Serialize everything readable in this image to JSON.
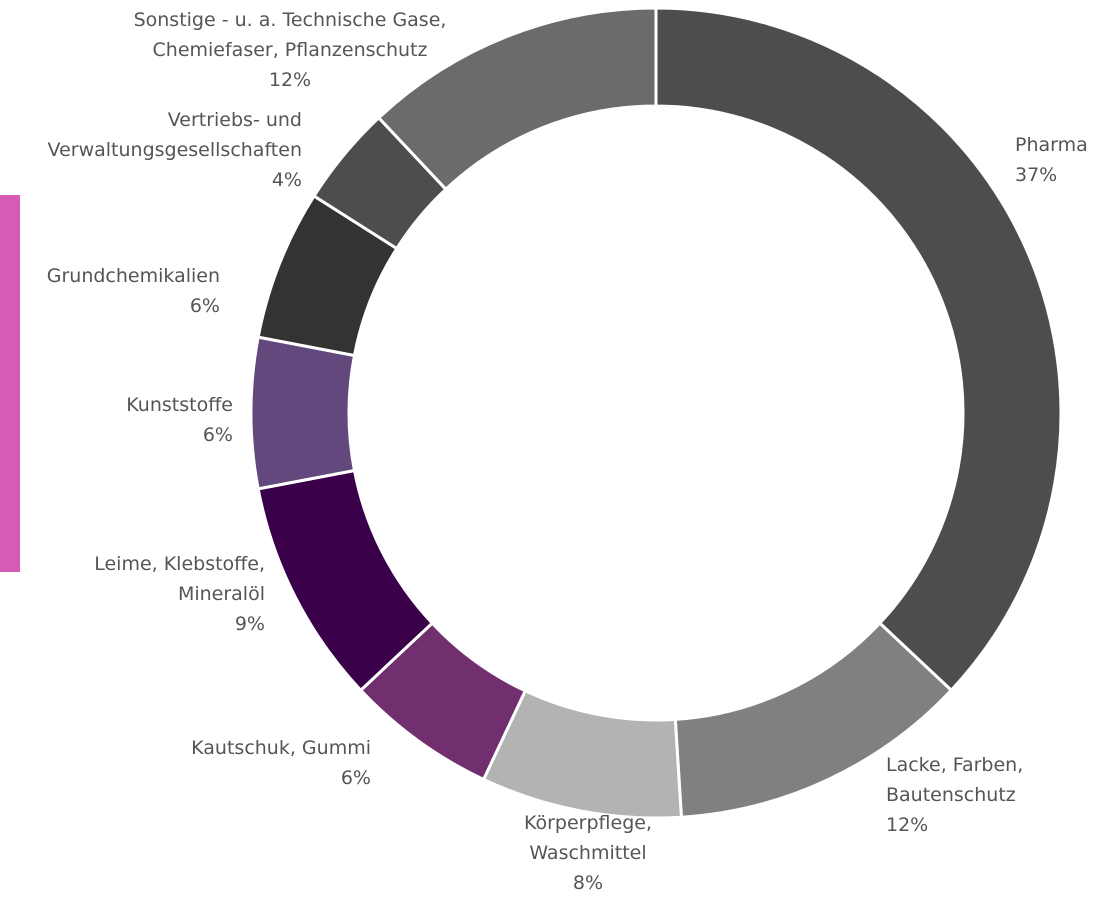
{
  "chart_data": {
    "type": "donut",
    "categories": [
      "Pharma",
      "Lacke, Farben, Bautenschutz",
      "Körperpflege, Waschmittel",
      "Kautschuk, Gummi",
      "Leime, Klebstoffe, Mineralöl",
      "Kunststoffe",
      "Grundchemikalien",
      "Vertriebs- und Verwaltungsgesellschaften",
      "Sonstige - u. a. Technische Gase, Chemiefaser, Pflanzenschutz"
    ],
    "values": [
      37,
      12,
      8,
      6,
      9,
      6,
      6,
      4,
      12
    ],
    "value_labels": [
      "37%",
      "12%",
      "8%",
      "6%",
      "9%",
      "6%",
      "6%",
      "4%",
      "12%"
    ],
    "colors": [
      "#4d4d4d",
      "#808080",
      "#b3b3b3",
      "#722f6f",
      "#3b004a",
      "#62487c",
      "#333333",
      "#4d4d4d",
      "#6b6b6b"
    ]
  }
}
